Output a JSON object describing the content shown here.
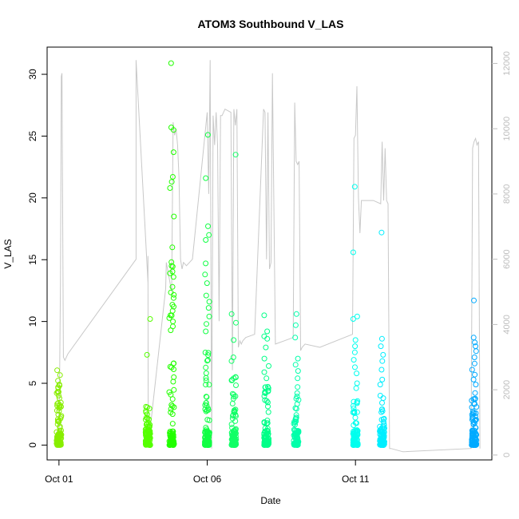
{
  "chart_data": {
    "type": "scatter",
    "title": "ATOM3 Southbound V_LAS",
    "xlabel": "Date",
    "ylabel": "V_LAS",
    "x_ticks": [
      "Oct 01",
      "Oct 06",
      "Oct 11"
    ],
    "x_tick_days": [
      1,
      6,
      11
    ],
    "xlim_days": [
      0.6,
      15.6
    ],
    "ylim": [
      -1.2,
      32.2
    ],
    "y_ticks": [
      0,
      5,
      10,
      15,
      20,
      25,
      30
    ],
    "secondary_axis": {
      "ylim": [
        -150,
        12500
      ],
      "ticks": [
        0,
        2000,
        4000,
        6000,
        8000,
        10000,
        12000
      ],
      "color": "#bdbdbd"
    },
    "grid": false,
    "legend": "none",
    "point_groups": [
      {
        "day": 1.0,
        "color": "#88ee00",
        "max": 6.1,
        "outliers": [
          4.9,
          4.6,
          4.3,
          4.0,
          3.8,
          3.4,
          3.1
        ]
      },
      {
        "day": 4.0,
        "color": "#55ff00",
        "max": 3.1,
        "outliers": [
          10.2,
          7.3,
          3.1,
          2.5,
          1.8,
          1.2
        ]
      },
      {
        "day": 4.8,
        "color": "#22ff00",
        "max": 15.0,
        "outliers": [
          30.9,
          25.7,
          25.5,
          23.7,
          21.7,
          21.3,
          20.8,
          18.5,
          16.0,
          14.8,
          14.5,
          13.9,
          12.8,
          11.9,
          11.2,
          10.5,
          10.0,
          9.6
        ]
      },
      {
        "day": 6.0,
        "color": "#11ff44",
        "max": 9.0,
        "outliers": [
          25.1,
          21.6,
          17.7,
          17.0,
          16.6,
          14.7,
          13.8,
          13.1,
          12.1,
          11.6,
          11.1,
          10.4,
          9.8,
          9.2
        ]
      },
      {
        "day": 6.9,
        "color": "#11ff66",
        "max": 5.8,
        "outliers": [
          23.5,
          10.6,
          9.9,
          8.5,
          7.1,
          6.8
        ]
      },
      {
        "day": 8.0,
        "color": "#00ff88",
        "max": 5.0,
        "outliers": [
          10.5,
          9.2,
          8.8,
          8.6,
          7.9,
          7.0,
          6.4,
          5.9,
          5.4
        ]
      },
      {
        "day": 9.0,
        "color": "#00ffaa",
        "max": 4.0,
        "outliers": [
          10.6,
          9.7,
          8.7,
          7.0,
          6.5,
          6.0,
          5.4,
          4.7,
          4.2
        ]
      },
      {
        "day": 11.0,
        "color": "#00ffee",
        "max": 4.2,
        "outliers": [
          20.9,
          15.6,
          10.4,
          10.2,
          8.5,
          8.0,
          7.5,
          6.9,
          6.3,
          5.8,
          5.0,
          4.6
        ]
      },
      {
        "day": 11.9,
        "color": "#00eeff",
        "max": 3.5,
        "outliers": [
          17.2,
          8.6,
          8.0,
          7.3,
          6.8,
          6.1,
          5.3,
          4.9,
          4.0,
          3.8
        ]
      },
      {
        "day": 15.0,
        "color": "#00aaff",
        "max": 4.5,
        "outliers": [
          11.7,
          8.7,
          8.3,
          8.0,
          7.6,
          7.1,
          6.6,
          6.1,
          5.7,
          5.3,
          4.9
        ]
      }
    ],
    "secondary_series": [
      {
        "name": "",
        "color": "#c8c8c8",
        "x": [
          1.0,
          1.05,
          1.08,
          1.1,
          1.15,
          1.2,
          1.3,
          3.6,
          3.6,
          4.0,
          4.0,
          4.01,
          4.05,
          4.1,
          4.6,
          4.62,
          4.8,
          4.85,
          4.9,
          4.95,
          5.0,
          5.05,
          5.1,
          5.15,
          5.2,
          5.3,
          5.5,
          6.0,
          6.05,
          6.1,
          6.15,
          6.2,
          6.25,
          6.3,
          6.35,
          6.4,
          6.45,
          6.5,
          6.6,
          6.8,
          6.85,
          6.9,
          6.95,
          7.0,
          7.05,
          7.1,
          7.15,
          7.2,
          7.3,
          7.6,
          7.9,
          7.95,
          8.0,
          8.05,
          8.1,
          8.15,
          8.2,
          8.3,
          8.6,
          8.9,
          8.95,
          9.0,
          9.05,
          9.1,
          9.15,
          9.2,
          9.3,
          9.8,
          10.9,
          10.95,
          11.0,
          11.05,
          11.1,
          11.15,
          11.2,
          11.3,
          11.6,
          11.85,
          11.9,
          11.95,
          12.0,
          12.05,
          12.1,
          12.15,
          12.2,
          12.6,
          14.9,
          14.95,
          15.0,
          15.05,
          15.1,
          15.15,
          15.2
        ],
        "y": [
          300,
          5200,
          11600,
          11700,
          3000,
          2900,
          3100,
          6000,
          12100,
          5300,
          6100,
          800,
          900,
          1000,
          5100,
          5900,
          5000,
          10200,
          9800,
          10000,
          9500,
          8500,
          6000,
          5700,
          5900,
          5800,
          6000,
          10500,
          8000,
          12100,
          200,
          10400,
          9500,
          10500,
          9500,
          4100,
          10400,
          10400,
          10600,
          10500,
          2600,
          10600,
          10100,
          10600,
          3300,
          3500,
          3400,
          3500,
          3600,
          3700,
          10600,
          10500,
          6000,
          10500,
          5700,
          5900,
          11700,
          3400,
          3500,
          3600,
          10800,
          9000,
          8900,
          9000,
          3200,
          3300,
          3400,
          3300,
          3700,
          9700,
          9800,
          11300,
          7900,
          6800,
          7800,
          7800,
          7800,
          7700,
          9600,
          7800,
          9400,
          7800,
          7700,
          200,
          200,
          100,
          200,
          9400,
          9600,
          9700,
          9500,
          9600,
          200
        ]
      }
    ]
  }
}
